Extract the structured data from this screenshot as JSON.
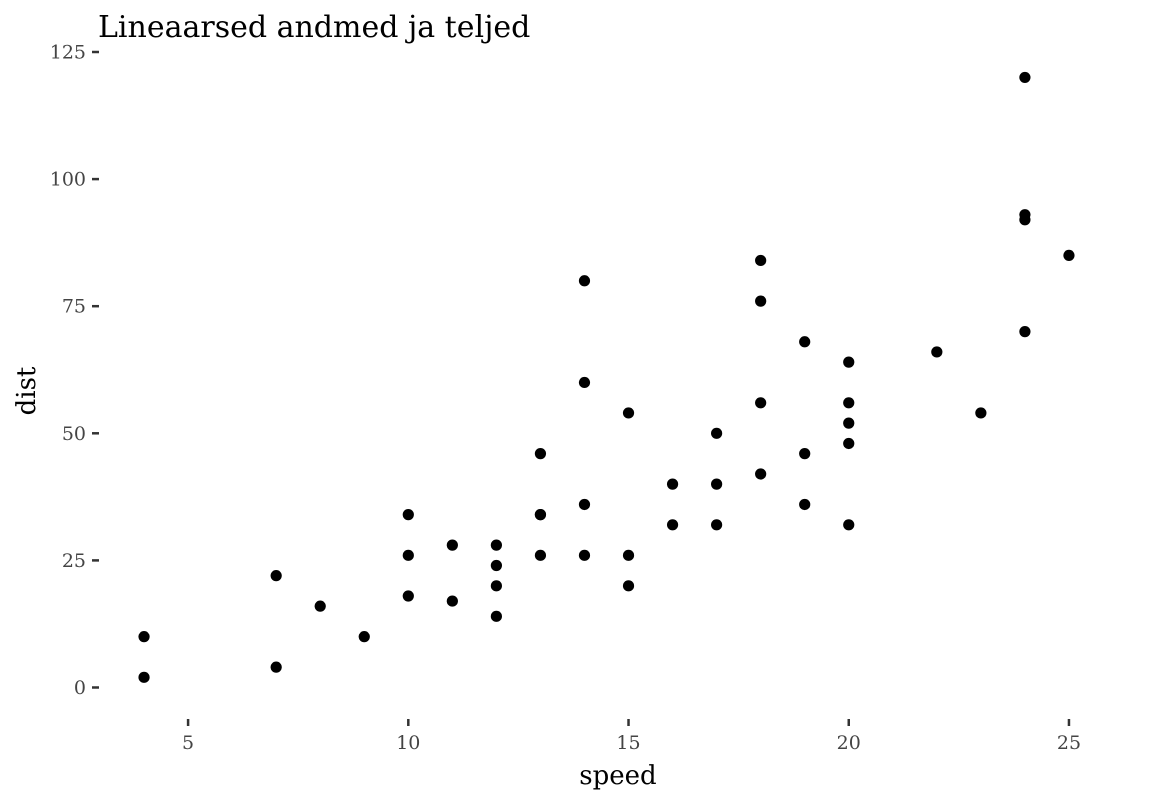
{
  "chart_data": {
    "type": "scatter",
    "title": "Lineaarsed andmed ja teljed",
    "xlabel": "speed",
    "ylabel": "dist",
    "xlim": [
      3,
      26
    ],
    "ylim": [
      -6,
      125
    ],
    "x_ticks": [
      5,
      10,
      15,
      20,
      25
    ],
    "y_ticks": [
      0,
      25,
      50,
      75,
      100,
      125
    ],
    "grid": false,
    "point_color": "#000000",
    "points": [
      {
        "x": 4,
        "y": 2
      },
      {
        "x": 4,
        "y": 10
      },
      {
        "x": 7,
        "y": 4
      },
      {
        "x": 7,
        "y": 22
      },
      {
        "x": 8,
        "y": 16
      },
      {
        "x": 9,
        "y": 10
      },
      {
        "x": 10,
        "y": 18
      },
      {
        "x": 10,
        "y": 26
      },
      {
        "x": 10,
        "y": 34
      },
      {
        "x": 11,
        "y": 17
      },
      {
        "x": 11,
        "y": 28
      },
      {
        "x": 12,
        "y": 14
      },
      {
        "x": 12,
        "y": 20
      },
      {
        "x": 12,
        "y": 24
      },
      {
        "x": 12,
        "y": 28
      },
      {
        "x": 13,
        "y": 26
      },
      {
        "x": 13,
        "y": 34
      },
      {
        "x": 13,
        "y": 34
      },
      {
        "x": 13,
        "y": 46
      },
      {
        "x": 14,
        "y": 26
      },
      {
        "x": 14,
        "y": 36
      },
      {
        "x": 14,
        "y": 60
      },
      {
        "x": 14,
        "y": 80
      },
      {
        "x": 15,
        "y": 20
      },
      {
        "x": 15,
        "y": 26
      },
      {
        "x": 15,
        "y": 54
      },
      {
        "x": 16,
        "y": 32
      },
      {
        "x": 16,
        "y": 40
      },
      {
        "x": 17,
        "y": 32
      },
      {
        "x": 17,
        "y": 40
      },
      {
        "x": 17,
        "y": 50
      },
      {
        "x": 18,
        "y": 42
      },
      {
        "x": 18,
        "y": 56
      },
      {
        "x": 18,
        "y": 76
      },
      {
        "x": 18,
        "y": 84
      },
      {
        "x": 19,
        "y": 36
      },
      {
        "x": 19,
        "y": 46
      },
      {
        "x": 19,
        "y": 68
      },
      {
        "x": 20,
        "y": 32
      },
      {
        "x": 20,
        "y": 48
      },
      {
        "x": 20,
        "y": 52
      },
      {
        "x": 20,
        "y": 56
      },
      {
        "x": 20,
        "y": 64
      },
      {
        "x": 22,
        "y": 66
      },
      {
        "x": 23,
        "y": 54
      },
      {
        "x": 24,
        "y": 70
      },
      {
        "x": 24,
        "y": 92
      },
      {
        "x": 24,
        "y": 93
      },
      {
        "x": 24,
        "y": 120
      },
      {
        "x": 25,
        "y": 85
      }
    ]
  }
}
